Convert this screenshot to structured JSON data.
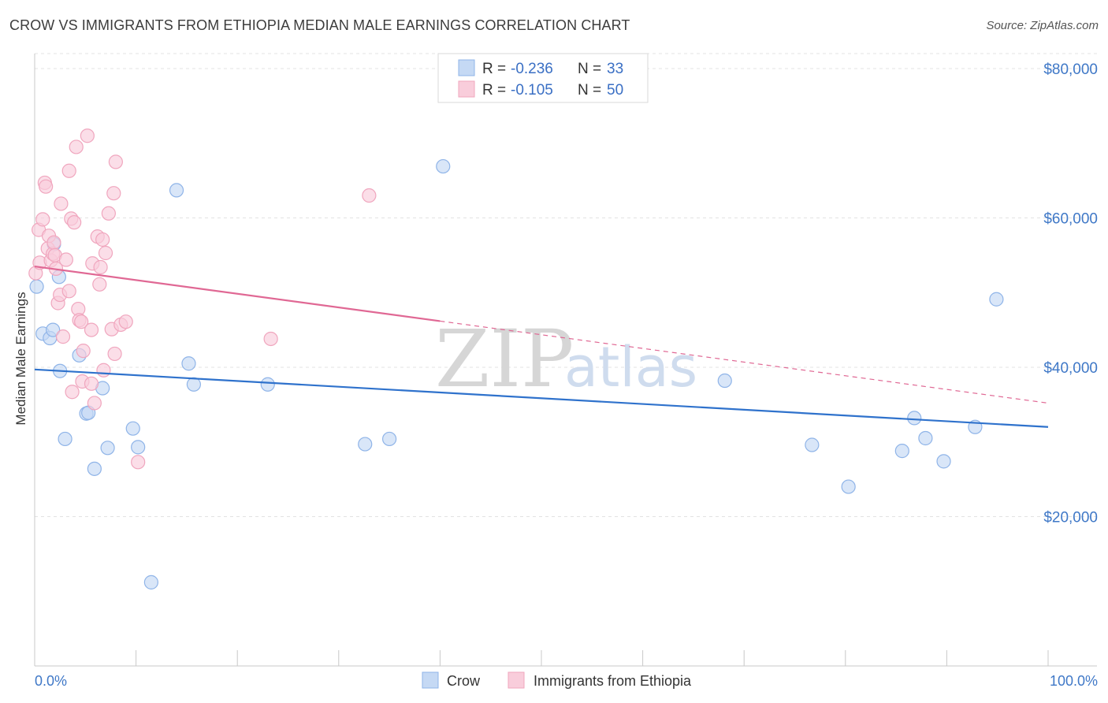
{
  "title": "CROW VS IMMIGRANTS FROM ETHIOPIA MEDIAN MALE EARNINGS CORRELATION CHART",
  "source": "Source: ZipAtlas.com",
  "watermark": {
    "zip": "ZIP",
    "atlas": "atlas"
  },
  "legend": {
    "rows": [
      {
        "r_label": "R =",
        "r_value": "-0.236",
        "n_label": "N =",
        "n_value": "33"
      },
      {
        "r_label": "R =",
        "r_value": "-0.105",
        "n_label": "N =",
        "n_value": "50"
      }
    ]
  },
  "bottom_legend": [
    "Crow",
    "Immigrants from Ethiopia"
  ],
  "chart_data": {
    "type": "scatter",
    "title": "CROW VS IMMIGRANTS FROM ETHIOPIA MEDIAN MALE EARNINGS CORRELATION CHART",
    "xlabel": "",
    "ylabel": "Median Male Earnings",
    "xlim": [
      0,
      100
    ],
    "ylim": [
      0,
      82000
    ],
    "x_tick_labels": [
      "0.0%",
      "100.0%"
    ],
    "y_ticks": [
      20000,
      40000,
      60000,
      80000
    ],
    "y_tick_labels": [
      "$20,000",
      "$40,000",
      "$60,000",
      "$80,000"
    ],
    "series": [
      {
        "name": "Crow",
        "color": "#8fb4e8",
        "fill": "#c5d9f4",
        "line_color": "#2f72cc",
        "trend": {
          "x": [
            0,
            100
          ],
          "y": [
            39700,
            32000
          ],
          "dashed_from": null
        },
        "points": [
          [
            0.2,
            50800
          ],
          [
            0.8,
            44500
          ],
          [
            1.5,
            43900
          ],
          [
            1.8,
            45000
          ],
          [
            1.9,
            56500
          ],
          [
            2.4,
            52100
          ],
          [
            2.5,
            39500
          ],
          [
            3.0,
            30400
          ],
          [
            4.4,
            41600
          ],
          [
            5.1,
            33800
          ],
          [
            5.3,
            33900
          ],
          [
            5.9,
            26400
          ],
          [
            6.7,
            37200
          ],
          [
            7.2,
            29200
          ],
          [
            9.7,
            31800
          ],
          [
            10.2,
            29300
          ],
          [
            11.5,
            11200
          ],
          [
            14.0,
            63700
          ],
          [
            15.2,
            40500
          ],
          [
            15.7,
            37700
          ],
          [
            23.0,
            37700
          ],
          [
            32.6,
            29700
          ],
          [
            35.0,
            30400
          ],
          [
            40.3,
            66900
          ],
          [
            68.1,
            38200
          ],
          [
            76.7,
            29600
          ],
          [
            80.3,
            24000
          ],
          [
            85.6,
            28800
          ],
          [
            86.8,
            33200
          ],
          [
            87.9,
            30500
          ],
          [
            89.7,
            27400
          ],
          [
            92.8,
            32000
          ],
          [
            94.9,
            49100
          ]
        ]
      },
      {
        "name": "Immigrants from Ethiopia",
        "color": "#f0a6be",
        "fill": "#f9cddb",
        "line_color": "#e06894",
        "trend": {
          "x": [
            0,
            100
          ],
          "y": [
            53500,
            35200
          ],
          "dashed_from": 40
        },
        "points": [
          [
            0.1,
            52600
          ],
          [
            0.4,
            58400
          ],
          [
            0.5,
            54000
          ],
          [
            0.8,
            59800
          ],
          [
            1.0,
            64700
          ],
          [
            1.1,
            64200
          ],
          [
            1.3,
            55900
          ],
          [
            1.4,
            57600
          ],
          [
            1.6,
            54300
          ],
          [
            1.8,
            55200
          ],
          [
            1.9,
            56700
          ],
          [
            2.0,
            55000
          ],
          [
            2.1,
            53200
          ],
          [
            2.3,
            48600
          ],
          [
            2.5,
            49700
          ],
          [
            2.6,
            61900
          ],
          [
            2.8,
            44100
          ],
          [
            3.1,
            54400
          ],
          [
            3.4,
            50200
          ],
          [
            3.4,
            66300
          ],
          [
            3.6,
            59900
          ],
          [
            3.7,
            36700
          ],
          [
            3.9,
            59400
          ],
          [
            4.1,
            69500
          ],
          [
            4.3,
            47800
          ],
          [
            4.4,
            46300
          ],
          [
            4.6,
            46100
          ],
          [
            4.7,
            38100
          ],
          [
            4.8,
            42200
          ],
          [
            5.2,
            71000
          ],
          [
            5.6,
            37800
          ],
          [
            5.6,
            45000
          ],
          [
            5.7,
            53900
          ],
          [
            5.9,
            35200
          ],
          [
            6.2,
            57500
          ],
          [
            6.4,
            51100
          ],
          [
            6.5,
            53400
          ],
          [
            6.7,
            57100
          ],
          [
            6.8,
            39600
          ],
          [
            7.0,
            55300
          ],
          [
            7.3,
            60600
          ],
          [
            7.6,
            45100
          ],
          [
            7.8,
            63300
          ],
          [
            7.9,
            41800
          ],
          [
            8.0,
            67500
          ],
          [
            8.5,
            45700
          ],
          [
            9.0,
            46100
          ],
          [
            10.2,
            27300
          ],
          [
            23.3,
            43800
          ],
          [
            33.0,
            63000
          ]
        ]
      }
    ]
  }
}
